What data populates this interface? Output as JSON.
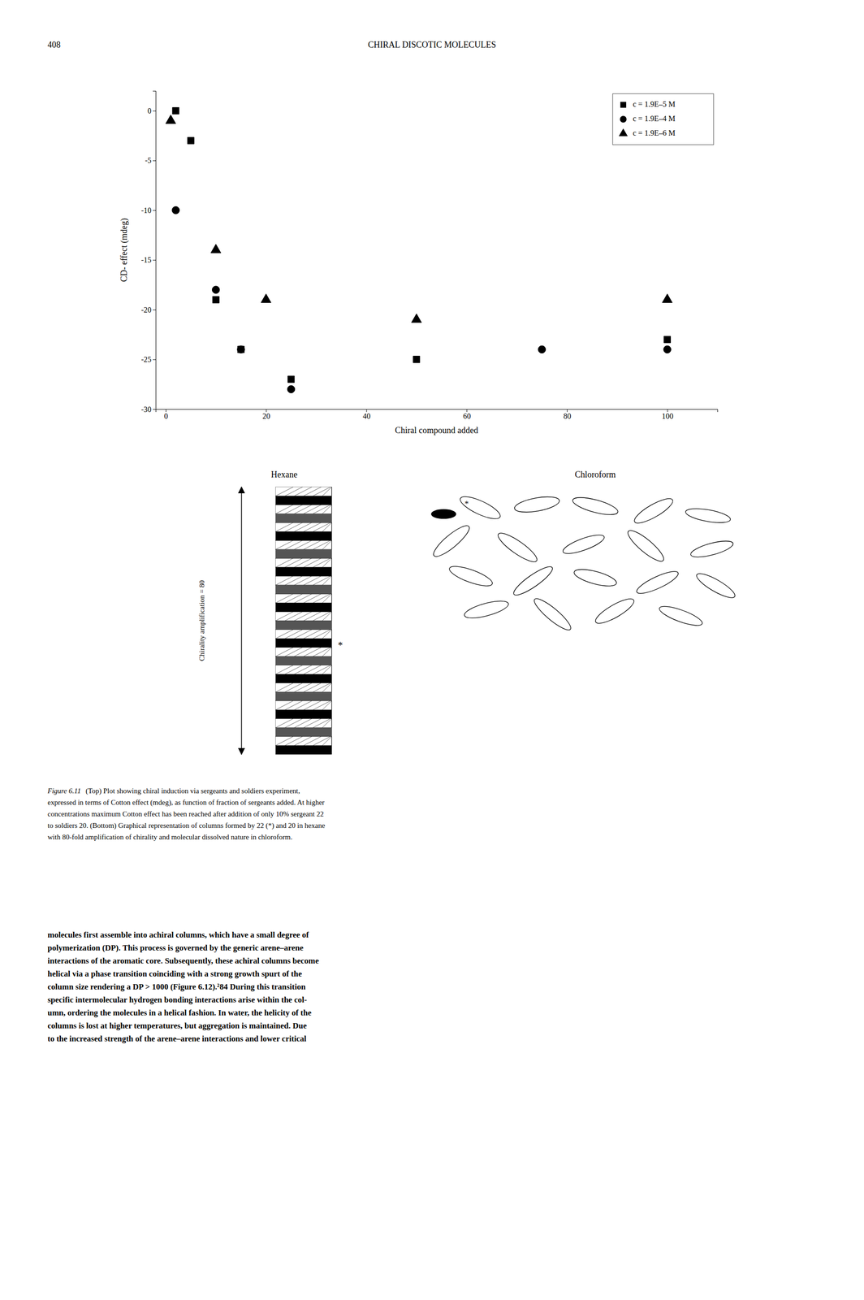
{
  "page_number": "408",
  "header": "CHIRAL DISCOTIC MOLECULES",
  "chart_data": {
    "type": "scatter",
    "xlabel": "Chiral compound added",
    "ylabel": "CD- effect (mdeg)",
    "xlim": [
      -2,
      110
    ],
    "ylim": [
      -30,
      2
    ],
    "xticks": [
      0,
      20,
      40,
      60,
      80,
      100
    ],
    "yticks": [
      0,
      -5,
      -10,
      -15,
      -20,
      -25,
      -30
    ],
    "grid": false,
    "legend": "upper right",
    "series": [
      {
        "name": "c = 1.9E–5 M",
        "marker": "square",
        "color": "black",
        "x": [
          2,
          5,
          10,
          15,
          25,
          50,
          100
        ],
        "values": [
          0,
          -3,
          -19,
          -24,
          -27,
          -25,
          -23
        ]
      },
      {
        "name": "c = 1.9E–4 M",
        "marker": "circle",
        "color": "black",
        "x": [
          2,
          10,
          15,
          25,
          75,
          100
        ],
        "values": [
          -10,
          -18,
          -24,
          -28,
          -24,
          -24
        ]
      },
      {
        "name": "c = 1.9E–6 M",
        "marker": "triangle",
        "color": "black",
        "x": [
          1,
          10,
          20,
          50,
          100
        ],
        "values": [
          -1,
          -14,
          -19,
          -21,
          -19
        ]
      }
    ]
  },
  "illustration": {
    "hexane_label": "Hexane",
    "chloroform_label": "Chloroform",
    "chirality_label": "Chirality amplification = 80",
    "star": "*"
  },
  "caption_label": "Figure 6.11",
  "caption_lines": [
    "(Top) Plot showing chiral induction via sergeants and soldiers experiment,",
    "expressed in terms of Cotton effect (mdeg), as function of fraction of sergeants added. At higher",
    "concentrations maximum Cotton effect has been reached after addition of only 10% sergeant 22",
    "to soldiers 20. (Bottom) Graphical representation of columns formed by 22 (*) and 20 in hexane",
    "with 80-fold amplification of chirality and molecular dissolved nature in chloroform."
  ],
  "body_lines": [
    "molecules first assemble into achiral columns, which have a small degree of",
    "polymerization (DP). This process is governed by the generic arene–arene",
    "interactions of the aromatic core. Subsequently, these achiral columns become",
    "helical via a phase transition coinciding with a strong growth spurt of the",
    "column size rendering a DP > 1000 (Figure 6.12).²84 During this transition",
    "specific intermolecular hydrogen bonding interactions arise within the col-",
    "umn, ordering the molecules in a helical fashion. In water, the helicity of the",
    "columns is lost at higher temperatures, but aggregation is maintained. Due",
    "to the increased strength of the arene–arene interactions and lower critical"
  ]
}
